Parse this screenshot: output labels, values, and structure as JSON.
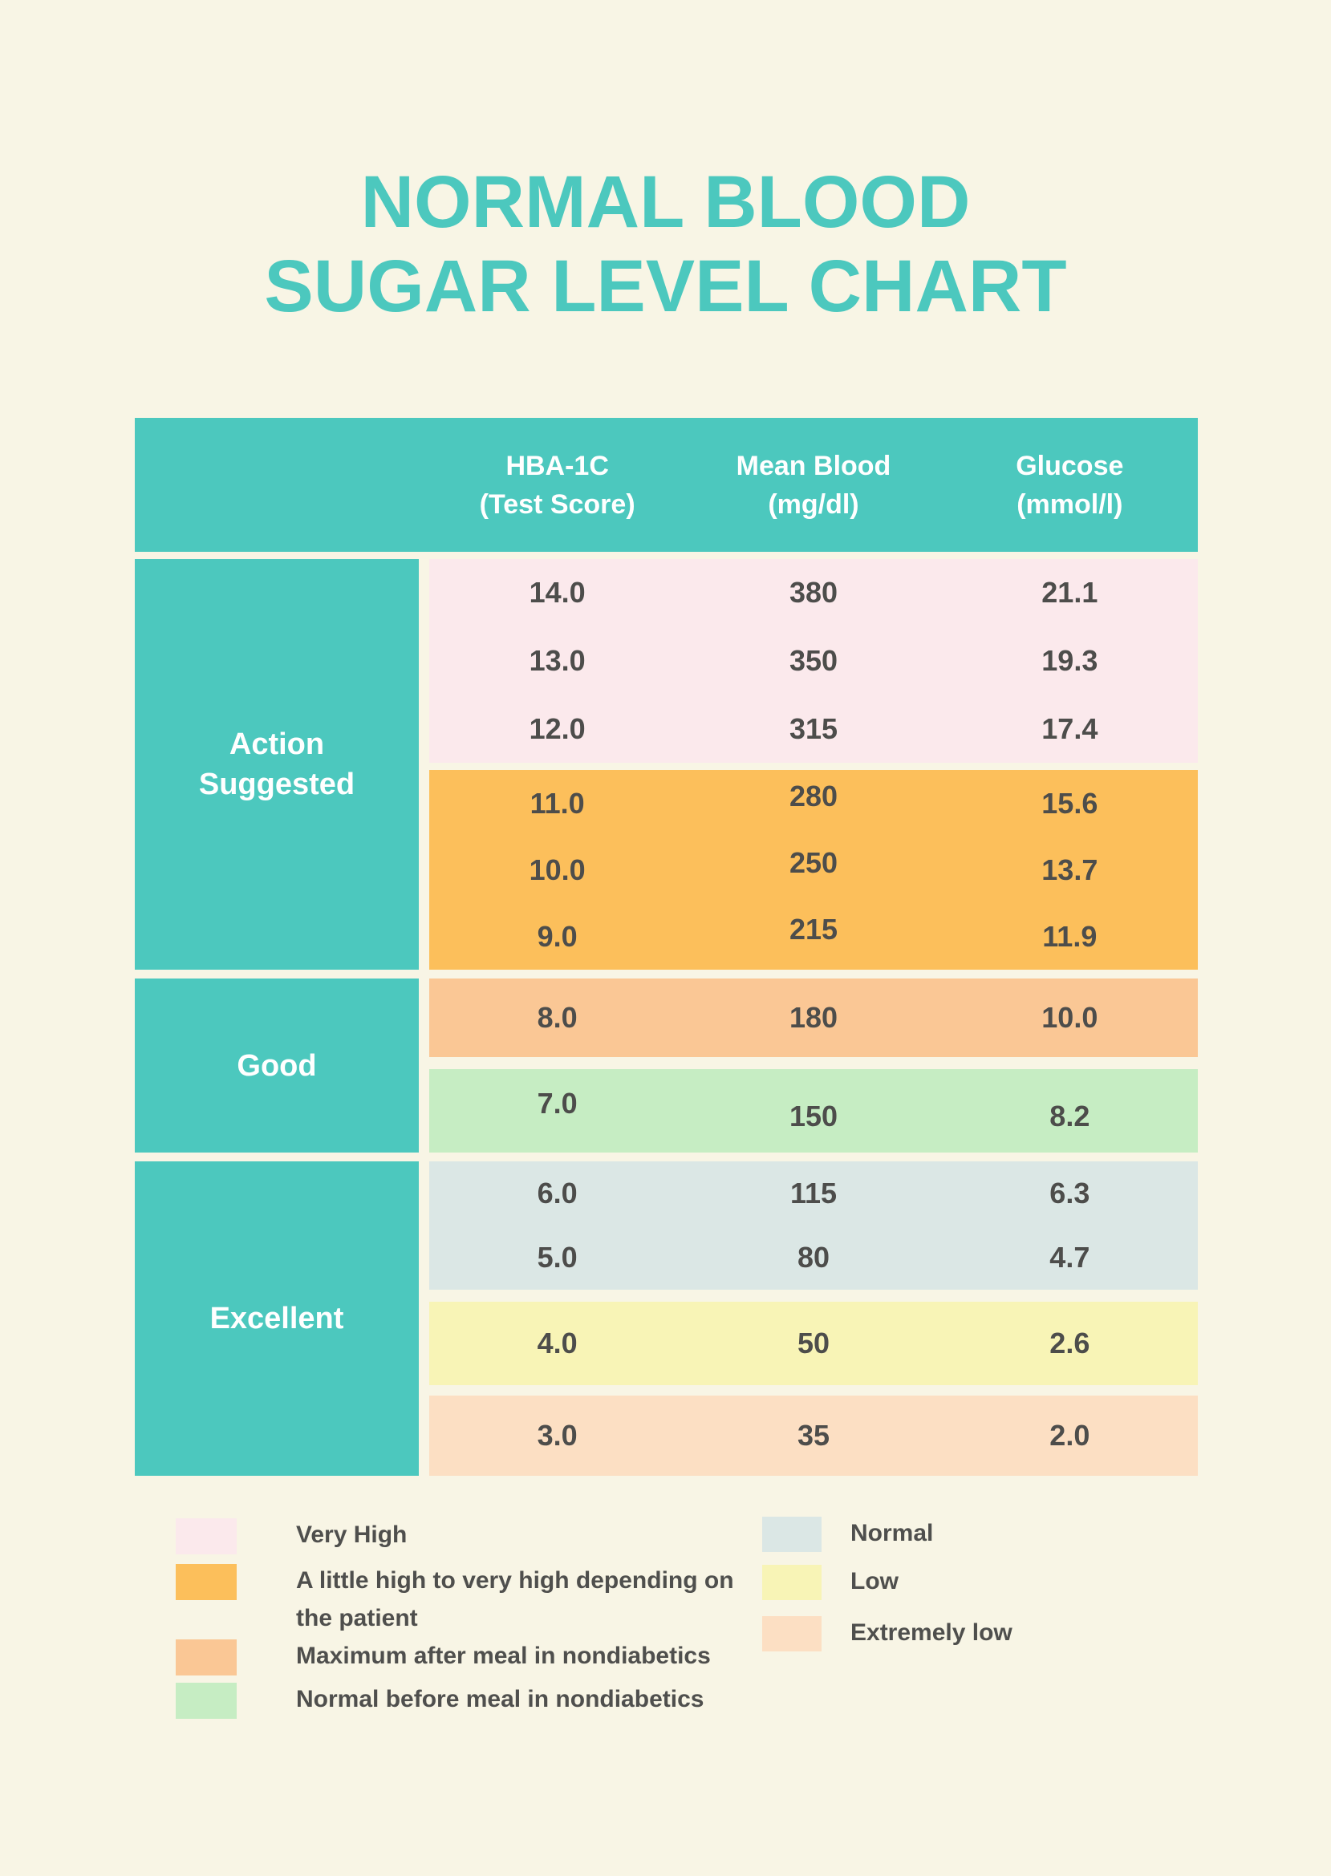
{
  "page": {
    "background": "#f8f5e5",
    "accent_teal": "#4cc8be",
    "text_dark": "#4d4d4b"
  },
  "title": {
    "line1": "NORMAL BLOOD",
    "line2": "SUGAR LEVEL CHART",
    "color": "#4cc8be"
  },
  "table": {
    "header": {
      "bg": "#4cc8be",
      "cols": [
        {
          "line1": "HBA-1C",
          "line2": "(Test Score)"
        },
        {
          "line1": "Mean Blood",
          "line2": "(mg/dl)"
        },
        {
          "line1": "Glucose",
          "line2": "(mmol/l)"
        }
      ]
    },
    "groups": [
      {
        "label": "Action Suggested"
      },
      {
        "label": "Good"
      },
      {
        "label": "Excellent"
      }
    ],
    "bands": {
      "very_high": {
        "color": "#fbe9ec",
        "rows": [
          {
            "hba": "14.0",
            "mean": "380",
            "glucose": "21.1"
          },
          {
            "hba": "13.0",
            "mean": "350",
            "glucose": "19.3"
          },
          {
            "hba": "12.0",
            "mean": "315",
            "glucose": "17.4"
          }
        ]
      },
      "little_high": {
        "color": "#fcbf5b",
        "rows": [
          {
            "hba": "11.0",
            "mean": "280",
            "glucose": "15.6"
          },
          {
            "hba": "10.0",
            "mean": "250",
            "glucose": "13.7"
          },
          {
            "hba": "9.0",
            "mean": "215",
            "glucose": "11.9"
          }
        ]
      },
      "max_after_meal": {
        "color": "#fac795",
        "rows": [
          {
            "hba": "8.0",
            "mean": "180",
            "glucose": "10.0"
          }
        ]
      },
      "normal_before_meal": {
        "color": "#c6edc3",
        "rows": [
          {
            "hba": "7.0",
            "mean": "150",
            "glucose": "8.2"
          }
        ]
      },
      "normal": {
        "color": "#dbe7e5",
        "rows": [
          {
            "hba": "6.0",
            "mean": "115",
            "glucose": "6.3"
          },
          {
            "hba": "5.0",
            "mean": "80",
            "glucose": "4.7"
          }
        ]
      },
      "low": {
        "color": "#f8f4b6",
        "rows": [
          {
            "hba": "4.0",
            "mean": "50",
            "glucose": "2.6"
          }
        ]
      },
      "extremely_low": {
        "color": "#fcdfc3",
        "rows": [
          {
            "hba": "3.0",
            "mean": "35",
            "glucose": "2.0"
          }
        ]
      }
    }
  },
  "legend": {
    "left": [
      {
        "label": "Very High",
        "color": "#fbe9ec"
      },
      {
        "label": "A little high to very high depending on the patient",
        "color": "#fcbf5b"
      },
      {
        "label": "Maximum after meal in nondiabetics",
        "color": "#fac795"
      },
      {
        "label": "Normal before meal in nondiabetics",
        "color": "#c6edc3"
      }
    ],
    "right": [
      {
        "label": "Normal",
        "color": "#dbe7e5"
      },
      {
        "label": "Low",
        "color": "#f8f4b6"
      },
      {
        "label": "Extremely low",
        "color": "#fcdfc3"
      }
    ]
  },
  "chart_data": {
    "type": "table",
    "title": "NORMAL BLOOD SUGAR LEVEL CHART",
    "columns": [
      "HBA-1C (Test Score)",
      "Mean Blood (mg/dl)",
      "Glucose (mmol/l)"
    ],
    "groups": [
      {
        "label": "Action Suggested",
        "bands": [
          {
            "category": "Very High",
            "color": "#fbe9ec",
            "rows": [
              [
                14.0,
                380,
                21.1
              ],
              [
                13.0,
                350,
                19.3
              ],
              [
                12.0,
                315,
                17.4
              ]
            ]
          },
          {
            "category": "A little high to very high depending on the patient",
            "color": "#fcbf5b",
            "rows": [
              [
                11.0,
                280,
                15.6
              ],
              [
                10.0,
                250,
                13.7
              ],
              [
                9.0,
                215,
                11.9
              ]
            ]
          }
        ]
      },
      {
        "label": "Good",
        "bands": [
          {
            "category": "Maximum after meal in nondiabetics",
            "color": "#fac795",
            "rows": [
              [
                8.0,
                180,
                10.0
              ]
            ]
          },
          {
            "category": "Normal before meal in nondiabetics",
            "color": "#c6edc3",
            "rows": [
              [
                7.0,
                150,
                8.2
              ]
            ]
          }
        ]
      },
      {
        "label": "Excellent",
        "bands": [
          {
            "category": "Normal",
            "color": "#dbe7e5",
            "rows": [
              [
                6.0,
                115,
                6.3
              ],
              [
                5.0,
                80,
                4.7
              ]
            ]
          },
          {
            "category": "Low",
            "color": "#f8f4b6",
            "rows": [
              [
                4.0,
                50,
                2.6
              ]
            ]
          },
          {
            "category": "Extremely low",
            "color": "#fcdfc3",
            "rows": [
              [
                3.0,
                35,
                2.0
              ]
            ]
          }
        ]
      }
    ],
    "legend_position": "bottom"
  }
}
